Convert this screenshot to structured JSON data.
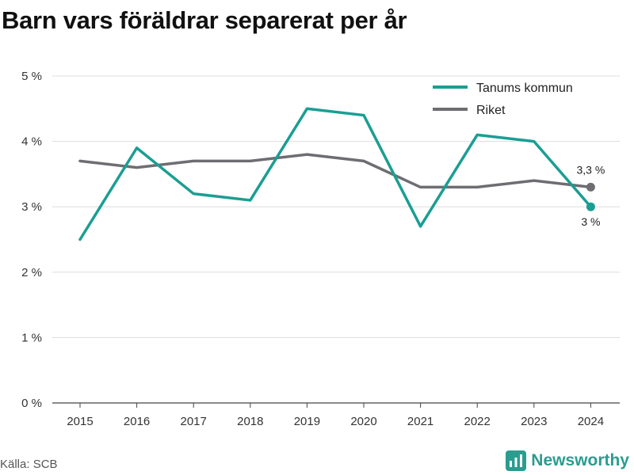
{
  "title": "Barn vars föräldrar separerat per år",
  "source": "Källa: SCB",
  "brand": {
    "name": "Newsworthy",
    "icon": "newsworthy-logo-icon"
  },
  "colors": {
    "tanum": "#1a9e93",
    "riket": "#6e6d72",
    "grid": "#dddddd"
  },
  "chart_data": {
    "type": "line",
    "title": "Barn vars föräldrar separerat per år",
    "xlabel": "",
    "ylabel": "",
    "x": [
      "2015",
      "2016",
      "2017",
      "2018",
      "2019",
      "2020",
      "2021",
      "2022",
      "2023",
      "2024"
    ],
    "ylim": [
      0,
      5
    ],
    "y_ticks": [
      0,
      1,
      2,
      3,
      4,
      5
    ],
    "y_tick_labels": [
      "0 %",
      "1 %",
      "2 %",
      "3 %",
      "4 %",
      "5 %"
    ],
    "grid": "horizontal",
    "legend_position": "top-right",
    "series": [
      {
        "name": "Tanums kommun",
        "color": "#1a9e93",
        "values": [
          2.5,
          3.9,
          3.2,
          3.1,
          4.5,
          4.4,
          2.7,
          4.1,
          4.0,
          3.0
        ],
        "end_label": "3 %"
      },
      {
        "name": "Riket",
        "color": "#6e6d72",
        "values": [
          3.7,
          3.6,
          3.7,
          3.7,
          3.8,
          3.7,
          3.3,
          3.3,
          3.4,
          3.3
        ],
        "end_label": "3,3 %"
      }
    ]
  }
}
